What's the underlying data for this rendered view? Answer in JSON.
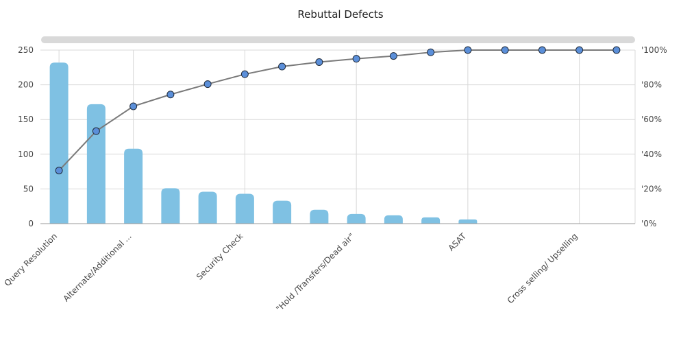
{
  "chart_data": {
    "type": "bar",
    "title": "Rebuttal Defects",
    "xlabel": "",
    "ylabel": "",
    "ylim": [
      0,
      250
    ],
    "y2lim": [
      0,
      100
    ],
    "yticks": [
      "0",
      "50",
      "100",
      "150",
      "200",
      "250"
    ],
    "y2ticks": [
      "'0%",
      "'20%",
      "'40%",
      "'60%",
      "'80%",
      "'100%"
    ],
    "categories": [
      "Query Resolution",
      "",
      "Alternate/Additional ...",
      "",
      "",
      "Security Check",
      "",
      "",
      "\"Hold /Transfers/Dead air\"",
      "",
      "",
      "ASAT",
      "",
      "",
      "Cross selling/ Upselling",
      ""
    ],
    "xtick_labels": [
      "Query Resolution",
      "Alternate/Additional ...",
      "Security Check",
      "\"Hold /Transfers/Dead air\"",
      "ASAT",
      "Cross selling/ Upselling"
    ],
    "series": [
      {
        "type": "bar",
        "values": [
          232,
          172,
          108,
          51,
          46,
          43,
          33,
          20,
          14,
          12,
          9,
          6,
          0,
          0,
          0,
          0
        ]
      },
      {
        "type": "line",
        "axis": "right",
        "values": [
          30.6,
          53.3,
          67.6,
          74.4,
          80.4,
          86.1,
          90.5,
          93.1,
          95.0,
          96.6,
          98.7,
          100,
          100,
          100,
          100,
          100
        ]
      }
    ],
    "grid": true,
    "colors": {
      "bar": "#7fc1e3",
      "line": "#7a7a7a",
      "marker": "#5b8fd9",
      "scrollbar": "#d9d9d9",
      "grid": "#d8d8d8"
    }
  }
}
